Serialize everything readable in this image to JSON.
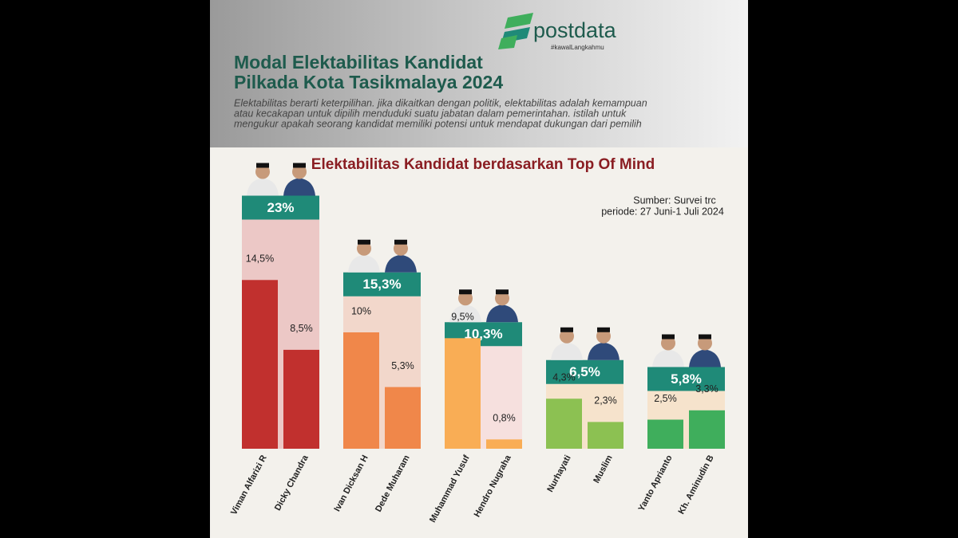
{
  "header": {
    "logo": "postdata",
    "tagline": "#kawalLangkahmu",
    "title": [
      "Modal Elektabilitas Kandidat",
      "Pilkada Kota Tasikmalaya 2024"
    ],
    "description": [
      "Elektabilitas berarti keterpilihan. jika dikaitkan dengan politik, elektabilitas adalah kemampuan",
      "atau kecakapan untuk dipilih menduduki suatu jabatan dalam pemerintahan. istilah untuk",
      "mengukur apakah seorang kandidat memiliki potensi untuk mendapat dukungan dari pemilih"
    ]
  },
  "chart_data": {
    "type": "bar",
    "title": "Elektabilitas Kandidat berdasarkan Top Of Mind",
    "source": [
      "Sumber: Survei trc",
      "periode: 27 Juni-1 Juli 2024"
    ],
    "categories": [
      "Viman Alfarizi  R",
      "Dicky Chandra",
      "Ivan Dicksan H",
      "Dede Muharam",
      "Muhammad Yusuf",
      "Hendro Nugraha",
      "Nurhayati",
      "Muslim",
      "Yanto Aprianto",
      "Kh. Aminudin B"
    ],
    "values": [
      14.5,
      8.5,
      10,
      5.3,
      9.5,
      0.8,
      4.3,
      2.3,
      2.5,
      3.3
    ],
    "value_labels": [
      "14,5%",
      "8,5%",
      "10%",
      "5,3%",
      "9,5%",
      "0,8%",
      "4,3%",
      "2,3%",
      "2,5%",
      "3,3%"
    ],
    "colors": [
      "#c1302e",
      "#c1302e",
      "#f0874a",
      "#f0874a",
      "#f9ad55",
      "#f9ad55",
      "#8cc152",
      "#8cc152",
      "#3fae5c",
      "#3fae5c"
    ],
    "totals": [
      23,
      15.3,
      10.3,
      6.5,
      5.8
    ],
    "total_labels": [
      "23%",
      "15,3%",
      "10,3%",
      "6,5%",
      "5,8%"
    ],
    "total_backgrounds": [
      "#ecc8c6",
      "#f2d7cb",
      "#f6e0de",
      "#f6e3cc",
      "#f6e3cc"
    ],
    "total_color": "#1f8a78"
  }
}
